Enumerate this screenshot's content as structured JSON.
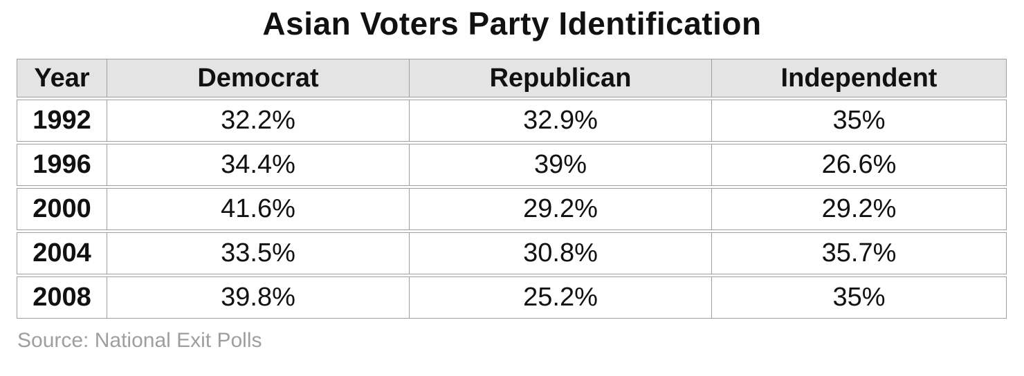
{
  "title": "Asian Voters Party Identification",
  "source": "Source: National Exit Polls",
  "table": {
    "columns": [
      "Year",
      "Democrat",
      "Republican",
      "Independent"
    ],
    "rows": [
      {
        "cells": [
          "1992",
          "32.2%",
          "32.9%",
          "35%"
        ]
      },
      {
        "cells": [
          "1996",
          "34.4%",
          "39%",
          "26.6%"
        ]
      },
      {
        "cells": [
          "2000",
          "41.6%",
          "29.2%",
          "29.2%"
        ]
      },
      {
        "cells": [
          "2004",
          "33.5%",
          "30.8%",
          "35.7%"
        ]
      },
      {
        "cells": [
          "2008",
          "39.8%",
          "25.2%",
          "35%"
        ]
      }
    ]
  },
  "colors": {
    "header_bg": "#e4e4e4",
    "border": "#9e9e9e",
    "text": "#111111",
    "source_text": "#9e9e9e"
  },
  "chart_data": {
    "type": "table",
    "title": "Asian Voters Party Identification",
    "categories": [
      "1992",
      "1996",
      "2000",
      "2004",
      "2008"
    ],
    "series": [
      {
        "name": "Democrat",
        "values": [
          32.2,
          34.4,
          41.6,
          33.5,
          39.8
        ]
      },
      {
        "name": "Republican",
        "values": [
          32.9,
          39.0,
          29.2,
          30.8,
          25.2
        ]
      },
      {
        "name": "Independent",
        "values": [
          35.0,
          26.6,
          29.2,
          35.7,
          35.0
        ]
      }
    ],
    "unit": "%",
    "columns": [
      "Year",
      "Democrat",
      "Republican",
      "Independent"
    ],
    "rows": [
      [
        "1992",
        "32.2%",
        "32.9%",
        "35%"
      ],
      [
        "1996",
        "34.4%",
        "39%",
        "26.6%"
      ],
      [
        "2000",
        "41.6%",
        "29.2%",
        "29.2%"
      ],
      [
        "2004",
        "33.5%",
        "30.8%",
        "35.7%"
      ],
      [
        "2008",
        "39.8%",
        "25.2%",
        "35%"
      ]
    ],
    "source": "Source: National Exit Polls"
  }
}
